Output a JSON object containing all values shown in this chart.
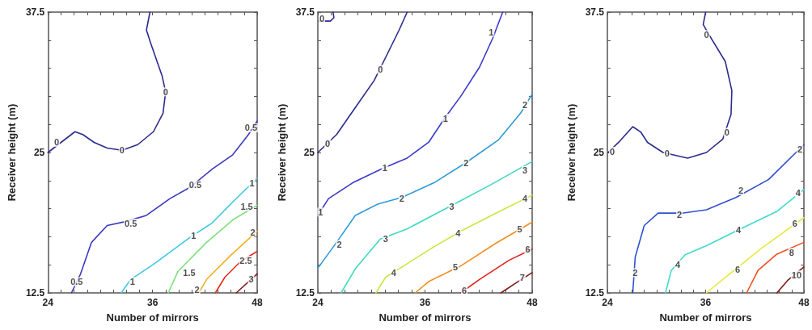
{
  "chart_data": [
    {
      "type": "line",
      "xlabel": "Number of mirrors",
      "ylabel": "Receiver height (m)",
      "xlim": [
        24,
        48
      ],
      "ylim": [
        12.5,
        37.5
      ],
      "marker": "none",
      "line_style": "solid",
      "xticks": [
        24,
        {
          "value": 25.5,
          "label": null
        },
        {
          "value": 27,
          "label": null
        },
        {
          "value": 28.5,
          "label": null
        },
        {
          "value": 30,
          "label": null
        },
        {
          "value": 31.5,
          "label": null
        },
        {
          "value": 33,
          "label": null
        },
        {
          "value": 34.5,
          "label": null
        },
        36,
        {
          "value": 37.5,
          "label": null
        },
        {
          "value": 39,
          "label": null
        },
        {
          "value": 40.5,
          "label": null
        },
        {
          "value": 42,
          "label": null
        },
        {
          "value": 43.5,
          "label": null
        },
        {
          "value": 45,
          "label": null
        },
        {
          "value": 46.5,
          "label": null
        },
        48
      ],
      "yticks": [
        12.5,
        {
          "value": 15,
          "label": null
        },
        {
          "value": 17.5,
          "label": null
        },
        {
          "value": 20,
          "label": null
        },
        {
          "value": 22.5,
          "label": null
        },
        25,
        {
          "value": 27.5,
          "label": null
        },
        {
          "value": 30,
          "label": null
        },
        {
          "value": 32.5,
          "label": null
        },
        {
          "value": 35,
          "label": null
        },
        37.5
      ],
      "series": [
        {
          "color": "#2b2b8c",
          "x": [
            24,
            27.1,
            28,
            29.3,
            30.8,
            32.5,
            34.3,
            36.1,
            37.2,
            37.5,
            37.1,
            35.8,
            35.3,
            35.7
          ],
          "values": [
            25,
            26.85,
            26.6,
            25.9,
            25.4,
            25.2,
            25.7,
            26.85,
            28.5,
            30.4,
            31.8,
            34.7,
            35.9,
            37.5
          ]
        },
        {
          "color": "#3a3ac0",
          "x": [
            26.7,
            27.75,
            29,
            30.8,
            32.9,
            35.3,
            38,
            40.4,
            42.8,
            45.2,
            47,
            48
          ],
          "values": [
            12.5,
            14.2,
            17,
            18.5,
            18.85,
            19.4,
            20.9,
            21.95,
            23.5,
            24.8,
            26.6,
            27.8
          ]
        },
        {
          "color": "#3fc8e0",
          "x": [
            32.4,
            33.5,
            36.2,
            40.4,
            42.8,
            45.2,
            48
          ],
          "values": [
            12.5,
            13.7,
            15.1,
            17.5,
            18.7,
            20.6,
            22.7
          ]
        },
        {
          "color": "#7ee07e",
          "x": [
            37.8,
            38.9,
            42.2,
            45.2,
            48
          ],
          "values": [
            12.5,
            14.4,
            17,
            19,
            20.3
          ]
        },
        {
          "color": "#f0b020",
          "x": [
            41.3,
            42.2,
            44.9,
            48
          ],
          "values": [
            12.5,
            13.7,
            15.8,
            18
          ]
        },
        {
          "color": "#e03020",
          "x": [
            43.2,
            44.3,
            46.1,
            48
          ],
          "values": [
            12.5,
            13.9,
            15.3,
            16.2
          ]
        },
        {
          "color": "#801818",
          "x": [
            45.6,
            48
          ],
          "values": [
            12.5,
            14.2
          ]
        }
      ],
      "annotations": [
        {
          "text": "0",
          "x": 25,
          "y": 25.9
        },
        {
          "text": "0",
          "x": 32.5,
          "y": 25.2
        },
        {
          "text": "0",
          "x": 37.5,
          "y": 30.4
        },
        {
          "text": "0.5",
          "x": 27.3,
          "y": 13.5
        },
        {
          "text": "0.5",
          "x": 33.5,
          "y": 18.7
        },
        {
          "text": "0.5",
          "x": 40.9,
          "y": 22.1
        },
        {
          "text": "0.5",
          "x": 47.3,
          "y": 27.2
        },
        {
          "text": "1",
          "x": 33.7,
          "y": 13.5
        },
        {
          "text": "1",
          "x": 40.7,
          "y": 17.6
        },
        {
          "text": "1",
          "x": 47.4,
          "y": 22.3
        },
        {
          "text": "1.5",
          "x": 40.2,
          "y": 14.3
        },
        {
          "text": "1.5",
          "x": 46.8,
          "y": 20.2
        },
        {
          "text": "2",
          "x": 41.1,
          "y": 12.8
        },
        {
          "text": "2",
          "x": 47.5,
          "y": 17.9
        },
        {
          "text": "2.5",
          "x": 46.7,
          "y": 15.4
        },
        {
          "text": "3",
          "x": 47.3,
          "y": 13.7
        }
      ]
    },
    {
      "type": "line",
      "xlabel": "Number of mirrors",
      "ylabel": "Receiver height (m)",
      "xlim": [
        24,
        48
      ],
      "ylim": [
        12.5,
        37.5
      ],
      "marker": "none",
      "line_style": "solid",
      "xticks": [
        24,
        {
          "value": 25.5,
          "label": null
        },
        {
          "value": 27,
          "label": null
        },
        {
          "value": 28.5,
          "label": null
        },
        {
          "value": 30,
          "label": null
        },
        {
          "value": 31.5,
          "label": null
        },
        {
          "value": 33,
          "label": null
        },
        {
          "value": 34.5,
          "label": null
        },
        36,
        {
          "value": 37.5,
          "label": null
        },
        {
          "value": 39,
          "label": null
        },
        {
          "value": 40.5,
          "label": null
        },
        {
          "value": 42,
          "label": null
        },
        {
          "value": 43.5,
          "label": null
        },
        {
          "value": 45,
          "label": null
        },
        {
          "value": 46.5,
          "label": null
        },
        48
      ],
      "yticks": [
        12.5,
        {
          "value": 15,
          "label": null
        },
        {
          "value": 17.5,
          "label": null
        },
        {
          "value": 20,
          "label": null
        },
        {
          "value": 22.5,
          "label": null
        },
        25,
        {
          "value": 27.5,
          "label": null
        },
        {
          "value": 30,
          "label": null
        },
        {
          "value": 32.5,
          "label": null
        },
        {
          "value": 35,
          "label": null
        },
        37.5
      ],
      "series": [
        {
          "color": "#2b2b8c",
          "x": [
            24.1,
            25.4,
            25.8,
            25.7
          ],
          "values": [
            36.7,
            36.7,
            37,
            37.5
          ]
        },
        {
          "color": "#2b2b8c",
          "x": [
            24,
            26.1,
            28.2,
            30.3,
            31.8,
            33.1,
            34
          ],
          "values": [
            25,
            26.6,
            29,
            31.4,
            33.8,
            35.9,
            37.5
          ]
        },
        {
          "color": "#3a3acc",
          "x": [
            24,
            25.2,
            27.9,
            31.3,
            34,
            36.4,
            38.2,
            40,
            42.1,
            43.6,
            44.7
          ],
          "values": [
            19.4,
            20.9,
            22.3,
            23.6,
            24.5,
            25.9,
            28.05,
            30,
            32.6,
            35.2,
            37.5
          ]
        },
        {
          "color": "#2f9ad8",
          "x": [
            24,
            26.1,
            28.2,
            30.7,
            33.4,
            37,
            40.6,
            44.2,
            46.7,
            48
          ],
          "values": [
            14.7,
            17,
            19.4,
            20.4,
            21,
            22.3,
            24.1,
            26.1,
            28.5,
            30.2
          ]
        },
        {
          "color": "#40d8c0",
          "x": [
            26.6,
            28.2,
            31,
            34,
            38.8,
            43.3,
            48
          ],
          "values": [
            12.5,
            14.65,
            17.3,
            18.2,
            20.2,
            22.1,
            24.2
          ]
        },
        {
          "color": "#c8e840",
          "x": [
            30.5,
            31.6,
            34,
            37,
            40,
            44.2,
            48
          ],
          "values": [
            12.5,
            13.9,
            15.1,
            16.6,
            18,
            19.7,
            21.2
          ]
        },
        {
          "color": "#f09020",
          "x": [
            34.9,
            36.4,
            40,
            43.9,
            48
          ],
          "values": [
            12.5,
            13.5,
            14.9,
            16.9,
            18.8
          ]
        },
        {
          "color": "#e02020",
          "x": [
            40,
            42.1,
            45.4,
            48
          ],
          "values": [
            12.5,
            13.7,
            15.4,
            16.4
          ]
        },
        {
          "color": "#801818",
          "x": [
            44.5,
            46.4,
            48
          ],
          "values": [
            12.5,
            13.5,
            14.3
          ]
        }
      ],
      "annotations": [
        {
          "text": "0",
          "x": 24.45,
          "y": 36.9
        },
        {
          "text": "0",
          "x": 25.1,
          "y": 25.8
        },
        {
          "text": "0",
          "x": 31,
          "y": 32.4
        },
        {
          "text": "1",
          "x": 24.3,
          "y": 19.7
        },
        {
          "text": "1",
          "x": 31.5,
          "y": 23.6
        },
        {
          "text": "1",
          "x": 38.3,
          "y": 28.05
        },
        {
          "text": "1",
          "x": 43.4,
          "y": 35.7
        },
        {
          "text": "2",
          "x": 26.4,
          "y": 16.8
        },
        {
          "text": "2",
          "x": 33.4,
          "y": 20.9
        },
        {
          "text": "2",
          "x": 40.6,
          "y": 24.1
        },
        {
          "text": "2",
          "x": 47.2,
          "y": 29.25
        },
        {
          "text": "3",
          "x": 31.6,
          "y": 17.3
        },
        {
          "text": "3",
          "x": 39,
          "y": 20.2
        },
        {
          "text": "3",
          "x": 47.2,
          "y": 23.4
        },
        {
          "text": "4",
          "x": 32.5,
          "y": 14.3
        },
        {
          "text": "4",
          "x": 39.7,
          "y": 17.8
        },
        {
          "text": "4",
          "x": 47.2,
          "y": 20.9
        },
        {
          "text": "5",
          "x": 39.4,
          "y": 14.8
        },
        {
          "text": "5",
          "x": 46.6,
          "y": 18.2
        },
        {
          "text": "6",
          "x": 40.4,
          "y": 12.7
        },
        {
          "text": "6",
          "x": 47.5,
          "y": 16.4
        },
        {
          "text": "7",
          "x": 46.9,
          "y": 13.9
        }
      ]
    },
    {
      "type": "line",
      "xlabel": "Number of mirrors",
      "ylabel": "Receiver height (m)",
      "xlim": [
        24,
        48
      ],
      "ylim": [
        12.5,
        37.5
      ],
      "marker": "none",
      "line_style": "solid",
      "xticks": [
        24,
        {
          "value": 25.5,
          "label": null
        },
        {
          "value": 27,
          "label": null
        },
        {
          "value": 28.5,
          "label": null
        },
        {
          "value": 30,
          "label": null
        },
        {
          "value": 31.5,
          "label": null
        },
        {
          "value": 33,
          "label": null
        },
        {
          "value": 34.5,
          "label": null
        },
        36,
        {
          "value": 37.5,
          "label": null
        },
        {
          "value": 39,
          "label": null
        },
        {
          "value": 40.5,
          "label": null
        },
        {
          "value": 42,
          "label": null
        },
        {
          "value": 43.5,
          "label": null
        },
        {
          "value": 45,
          "label": null
        },
        {
          "value": 46.5,
          "label": null
        },
        48
      ],
      "yticks": [
        12.5,
        {
          "value": 15,
          "label": null
        },
        {
          "value": 17.5,
          "label": null
        },
        {
          "value": 20,
          "label": null
        },
        {
          "value": 22.5,
          "label": null
        },
        25,
        {
          "value": 27.5,
          "label": null
        },
        {
          "value": 30,
          "label": null
        },
        {
          "value": 32.5,
          "label": null
        },
        {
          "value": 35,
          "label": null
        },
        37.5
      ],
      "series": [
        {
          "color": "#2b2b8c",
          "x": [
            24.1,
            25.5,
            27.1,
            28.1,
            28.9,
            30.8,
            33.8,
            36.1,
            38.1,
            39.1,
            39.2,
            38.4,
            36.4,
            35.7,
            36
          ],
          "values": [
            25,
            26,
            27.3,
            26.8,
            25.9,
            25,
            24.5,
            25,
            26.2,
            28.4,
            30.5,
            33.1,
            35.5,
            36.4,
            37.5
          ]
        },
        {
          "color": "#3050d0",
          "x": [
            27.1,
            27.4,
            28.5,
            30.2,
            33.1,
            36.1,
            39.7,
            43.7,
            48
          ],
          "values": [
            12.5,
            15.7,
            18.5,
            19.6,
            19.6,
            19.9,
            21,
            22.6,
            25.7
          ]
        },
        {
          "color": "#40d8d0",
          "x": [
            31.1,
            31.8,
            33.5,
            36.1,
            40,
            44.7,
            48
          ],
          "values": [
            12.5,
            14.5,
            15.9,
            16.7,
            18.1,
            19.75,
            21.7
          ]
        },
        {
          "color": "#e8e840",
          "x": [
            36.1,
            38.7,
            42.7,
            48
          ],
          "values": [
            12.5,
            14.05,
            16.4,
            19.2
          ]
        },
        {
          "color": "#f05020",
          "x": [
            41,
            42.4,
            44.7,
            48
          ],
          "values": [
            12.5,
            14.5,
            15.95,
            17
          ]
        },
        {
          "color": "#801818",
          "x": [
            44.7,
            46,
            48
          ],
          "values": [
            12.5,
            13.6,
            14.8
          ]
        }
      ],
      "annotations": [
        {
          "text": "0",
          "x": 24.6,
          "y": 25.1
        },
        {
          "text": "0",
          "x": 31.3,
          "y": 24.9
        },
        {
          "text": "0",
          "x": 38.6,
          "y": 26.8
        },
        {
          "text": "0",
          "x": 36.1,
          "y": 35.5
        },
        {
          "text": "2",
          "x": 27.4,
          "y": 14.3
        },
        {
          "text": "2",
          "x": 32.8,
          "y": 19.5
        },
        {
          "text": "2",
          "x": 40.3,
          "y": 21.6
        },
        {
          "text": "2",
          "x": 47.5,
          "y": 25.3
        },
        {
          "text": "4",
          "x": 32.6,
          "y": 15
        },
        {
          "text": "4",
          "x": 40,
          "y": 18.1
        },
        {
          "text": "4",
          "x": 47.3,
          "y": 21.4
        },
        {
          "text": "6",
          "x": 39.9,
          "y": 14.6
        },
        {
          "text": "6",
          "x": 46.9,
          "y": 18.7
        },
        {
          "text": "8",
          "x": 46.5,
          "y": 16.1
        },
        {
          "text": "10",
          "x": 47.1,
          "y": 14.1
        }
      ]
    }
  ]
}
